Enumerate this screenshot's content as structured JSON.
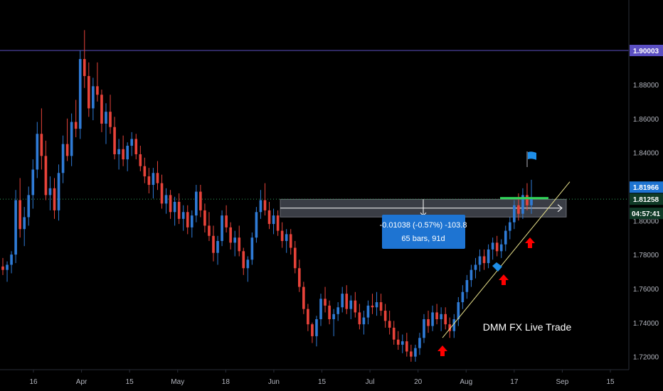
{
  "colors": {
    "background": "#000000",
    "up": "#2f7bd6",
    "down": "#e8433a",
    "axis_text": "#b2b5be",
    "h_line": "#5b4fc2",
    "trendline": "#e7e08a",
    "zone": "#3a3d45",
    "measure_box": "#1e74d2",
    "green_marker": "#31d65a",
    "arrow": "#ff0000",
    "flag": "#1e8ee8"
  },
  "chart_data": {
    "type": "candlestick",
    "x_ticks": [
      "16",
      "Apr",
      "15",
      "May",
      "18",
      "Jun",
      "15",
      "Jul",
      "20",
      "Aug",
      "17",
      "Sep",
      "15"
    ],
    "y_ticks": [
      "1.72000",
      "1.74000",
      "1.76000",
      "1.78000",
      "1.80000",
      "1.82000",
      "1.84000",
      "1.86000",
      "1.88000"
    ],
    "ylim": [
      1.7165,
      1.9155
    ],
    "price_tags": {
      "level": "1.90003",
      "high": "1.81966",
      "last": "1.81258",
      "countdown": "04:57:41"
    },
    "horizontal_level": 1.90003,
    "last_price": 1.81258,
    "zone": {
      "top": 1.8125,
      "bottom": 1.8021,
      "mid": 1.8073
    },
    "measure": {
      "line1": "-0.01038 (-0.57%) -103.8",
      "line2": "65 bars, 91d"
    },
    "trendline": [
      [
        0,
        1.7311
      ],
      [
        1,
        1.8228
      ]
    ],
    "annotation": "DMM FX Live Trade",
    "candles": [
      [
        1.773,
        1.778,
        1.768,
        1.771
      ],
      [
        1.771,
        1.776,
        1.764,
        1.774
      ],
      [
        1.774,
        1.782,
        1.769,
        1.78
      ],
      [
        1.78,
        1.818,
        1.775,
        1.812
      ],
      [
        1.812,
        1.825,
        1.79,
        1.795
      ],
      [
        1.795,
        1.808,
        1.785,
        1.802
      ],
      [
        1.802,
        1.82,
        1.797,
        1.815
      ],
      [
        1.815,
        1.836,
        1.807,
        1.83
      ],
      [
        1.83,
        1.858,
        1.825,
        1.851
      ],
      [
        1.851,
        1.866,
        1.83,
        1.838
      ],
      [
        1.838,
        1.847,
        1.812,
        1.815
      ],
      [
        1.815,
        1.826,
        1.806,
        1.819
      ],
      [
        1.819,
        1.825,
        1.801,
        1.806
      ],
      [
        1.806,
        1.833,
        1.8,
        1.828
      ],
      [
        1.828,
        1.85,
        1.822,
        1.845
      ],
      [
        1.845,
        1.86,
        1.835,
        1.838
      ],
      [
        1.838,
        1.863,
        1.832,
        1.858
      ],
      [
        1.858,
        1.871,
        1.849,
        1.854
      ],
      [
        1.854,
        1.9,
        1.848,
        1.895
      ],
      [
        1.895,
        1.912,
        1.878,
        1.885
      ],
      [
        1.885,
        1.893,
        1.861,
        1.866
      ],
      [
        1.866,
        1.884,
        1.859,
        1.879
      ],
      [
        1.879,
        1.893,
        1.87,
        1.874
      ],
      [
        1.874,
        1.877,
        1.852,
        1.857
      ],
      [
        1.857,
        1.869,
        1.845,
        1.864
      ],
      [
        1.864,
        1.874,
        1.851,
        1.855
      ],
      [
        1.855,
        1.861,
        1.836,
        1.839
      ],
      [
        1.839,
        1.848,
        1.83,
        1.842
      ],
      [
        1.842,
        1.85,
        1.832,
        1.836
      ],
      [
        1.836,
        1.846,
        1.829,
        1.844
      ],
      [
        1.844,
        1.852,
        1.838,
        1.848
      ],
      [
        1.848,
        1.851,
        1.836,
        1.839
      ],
      [
        1.839,
        1.844,
        1.829,
        1.832
      ],
      [
        1.832,
        1.837,
        1.822,
        1.826
      ],
      [
        1.826,
        1.831,
        1.816,
        1.821
      ],
      [
        1.821,
        1.831,
        1.813,
        1.828
      ],
      [
        1.828,
        1.835,
        1.818,
        1.822
      ],
      [
        1.822,
        1.827,
        1.807,
        1.81
      ],
      [
        1.81,
        1.819,
        1.804,
        1.815
      ],
      [
        1.815,
        1.818,
        1.801,
        1.805
      ],
      [
        1.805,
        1.814,
        1.797,
        1.811
      ],
      [
        1.811,
        1.816,
        1.798,
        1.801
      ],
      [
        1.801,
        1.809,
        1.794,
        1.805
      ],
      [
        1.805,
        1.809,
        1.792,
        1.796
      ],
      [
        1.796,
        1.806,
        1.79,
        1.803
      ],
      [
        1.803,
        1.821,
        1.799,
        1.817
      ],
      [
        1.817,
        1.821,
        1.802,
        1.806
      ],
      [
        1.806,
        1.81,
        1.793,
        1.797
      ],
      [
        1.797,
        1.805,
        1.788,
        1.791
      ],
      [
        1.791,
        1.797,
        1.776,
        1.781
      ],
      [
        1.781,
        1.791,
        1.774,
        1.788
      ],
      [
        1.788,
        1.806,
        1.785,
        1.803
      ],
      [
        1.803,
        1.809,
        1.793,
        1.796
      ],
      [
        1.796,
        1.799,
        1.783,
        1.787
      ],
      [
        1.787,
        1.794,
        1.779,
        1.79
      ],
      [
        1.79,
        1.797,
        1.779,
        1.782
      ],
      [
        1.782,
        1.784,
        1.768,
        1.772
      ],
      [
        1.772,
        1.779,
        1.764,
        1.777
      ],
      [
        1.777,
        1.793,
        1.774,
        1.79
      ],
      [
        1.79,
        1.808,
        1.787,
        1.805
      ],
      [
        1.805,
        1.818,
        1.801,
        1.812
      ],
      [
        1.812,
        1.822,
        1.803,
        1.806
      ],
      [
        1.806,
        1.811,
        1.795,
        1.798
      ],
      [
        1.798,
        1.807,
        1.792,
        1.803
      ],
      [
        1.803,
        1.806,
        1.791,
        1.794
      ],
      [
        1.794,
        1.799,
        1.784,
        1.788
      ],
      [
        1.788,
        1.795,
        1.781,
        1.792
      ],
      [
        1.792,
        1.795,
        1.78,
        1.784
      ],
      [
        1.784,
        1.788,
        1.769,
        1.772
      ],
      [
        1.772,
        1.777,
        1.758,
        1.761
      ],
      [
        1.761,
        1.764,
        1.745,
        1.748
      ],
      [
        1.748,
        1.751,
        1.735,
        1.739
      ],
      [
        1.739,
        1.74,
        1.728,
        1.732
      ],
      [
        1.732,
        1.744,
        1.726,
        1.742
      ],
      [
        1.742,
        1.757,
        1.738,
        1.754
      ],
      [
        1.754,
        1.761,
        1.746,
        1.75
      ],
      [
        1.75,
        1.753,
        1.739,
        1.742
      ],
      [
        1.742,
        1.748,
        1.732,
        1.745
      ],
      [
        1.745,
        1.752,
        1.741,
        1.749
      ],
      [
        1.749,
        1.761,
        1.746,
        1.757
      ],
      [
        1.757,
        1.762,
        1.745,
        1.748
      ],
      [
        1.748,
        1.756,
        1.742,
        1.753
      ],
      [
        1.753,
        1.758,
        1.743,
        1.746
      ],
      [
        1.746,
        1.751,
        1.736,
        1.739
      ],
      [
        1.739,
        1.747,
        1.733,
        1.743
      ],
      [
        1.743,
        1.753,
        1.739,
        1.75
      ],
      [
        1.75,
        1.757,
        1.745,
        1.749
      ],
      [
        1.749,
        1.758,
        1.744,
        1.752
      ],
      [
        1.752,
        1.757,
        1.744,
        1.747
      ],
      [
        1.747,
        1.751,
        1.737,
        1.741
      ],
      [
        1.741,
        1.747,
        1.733,
        1.737
      ],
      [
        1.737,
        1.741,
        1.727,
        1.73
      ],
      [
        1.73,
        1.735,
        1.724,
        1.727
      ],
      [
        1.727,
        1.733,
        1.722,
        1.729
      ],
      [
        1.729,
        1.734,
        1.72,
        1.723
      ],
      [
        1.723,
        1.727,
        1.717,
        1.72
      ],
      [
        1.72,
        1.727,
        1.717,
        1.725
      ],
      [
        1.725,
        1.734,
        1.721,
        1.731
      ],
      [
        1.731,
        1.745,
        1.728,
        1.742
      ],
      [
        1.742,
        1.747,
        1.734,
        1.738
      ],
      [
        1.738,
        1.75,
        1.735,
        1.746
      ],
      [
        1.746,
        1.751,
        1.739,
        1.742
      ],
      [
        1.742,
        1.749,
        1.735,
        1.745
      ],
      [
        1.745,
        1.749,
        1.736,
        1.739
      ],
      [
        1.739,
        1.743,
        1.731,
        1.735
      ],
      [
        1.735,
        1.745,
        1.731,
        1.742
      ],
      [
        1.742,
        1.755,
        1.738,
        1.752
      ],
      [
        1.752,
        1.762,
        1.748,
        1.758
      ],
      [
        1.758,
        1.768,
        1.754,
        1.765
      ],
      [
        1.765,
        1.774,
        1.761,
        1.771
      ],
      [
        1.771,
        1.778,
        1.766,
        1.774
      ],
      [
        1.774,
        1.783,
        1.77,
        1.779
      ],
      [
        1.779,
        1.783,
        1.771,
        1.775
      ],
      [
        1.775,
        1.786,
        1.772,
        1.783
      ],
      [
        1.783,
        1.79,
        1.777,
        1.787
      ],
      [
        1.787,
        1.791,
        1.779,
        1.782
      ],
      [
        1.782,
        1.789,
        1.778,
        1.786
      ],
      [
        1.786,
        1.797,
        1.782,
        1.794
      ],
      [
        1.794,
        1.802,
        1.789,
        1.799
      ],
      [
        1.799,
        1.812,
        1.795,
        1.809
      ],
      [
        1.809,
        1.816,
        1.8,
        1.804
      ],
      [
        1.804,
        1.819,
        1.801,
        1.815
      ],
      [
        1.815,
        1.822,
        1.806,
        1.809
      ],
      [
        1.809,
        1.824,
        1.804,
        1.813
      ]
    ]
  }
}
